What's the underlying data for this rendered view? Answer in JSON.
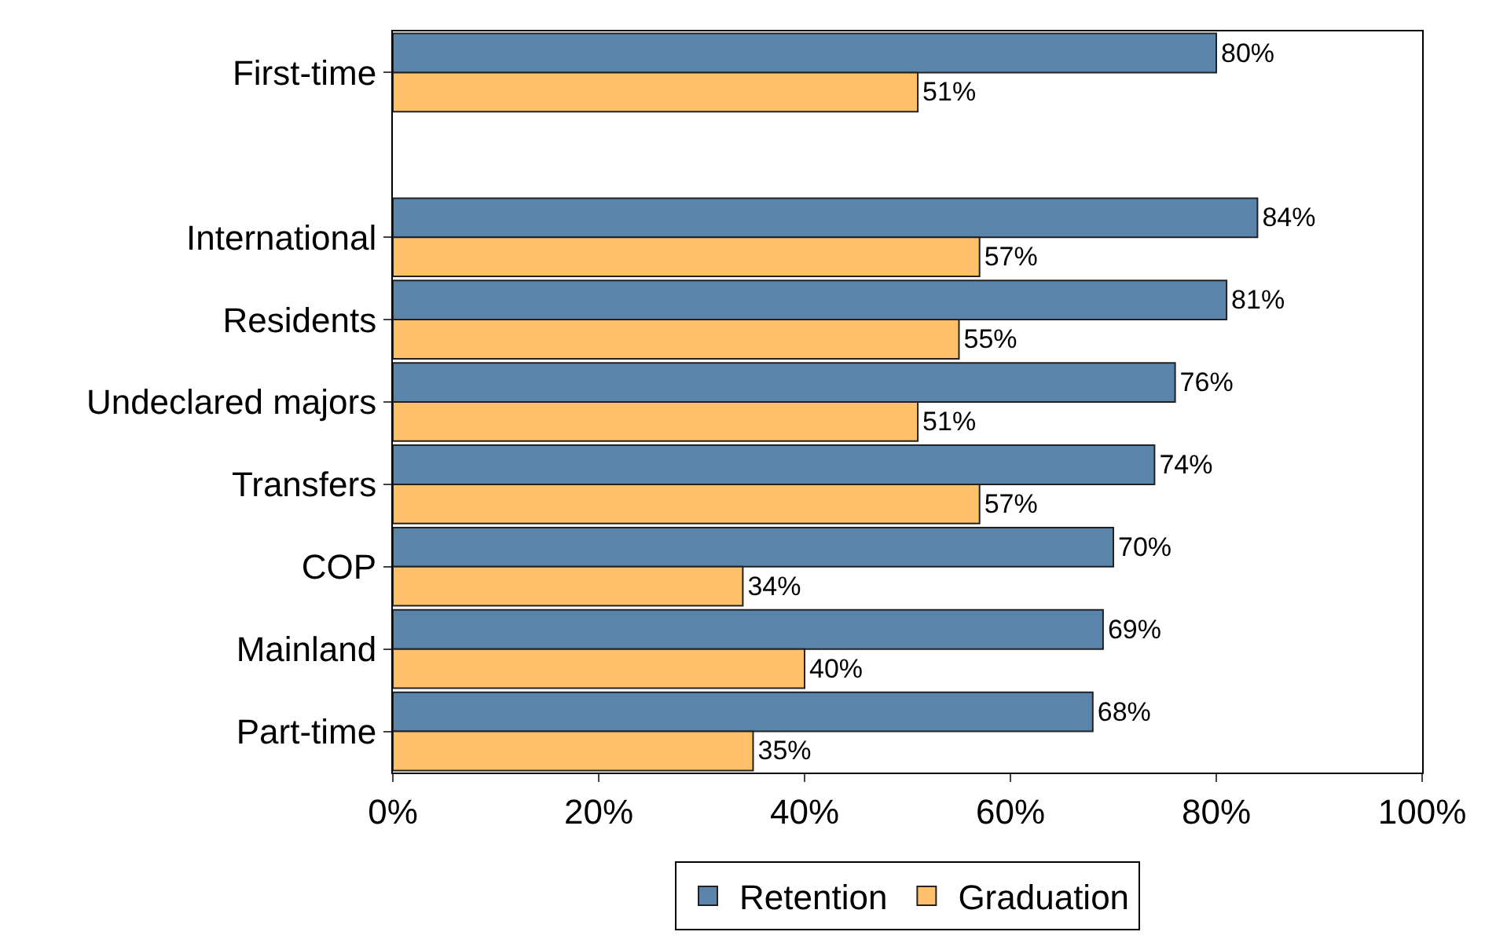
{
  "chart_data": {
    "type": "bar",
    "orientation": "horizontal",
    "categories": [
      "First-time",
      null,
      "International",
      "Residents",
      "Undeclared majors",
      "Transfers",
      "COP",
      "Mainland",
      "Part-time"
    ],
    "series": [
      {
        "name": "Retention",
        "color": "#5b84aa",
        "values": [
          80,
          null,
          84,
          81,
          76,
          74,
          70,
          69,
          68
        ],
        "value_labels": [
          "80%",
          null,
          "84%",
          "81%",
          "76%",
          "74%",
          "70%",
          "69%",
          "68%"
        ]
      },
      {
        "name": "Graduation",
        "color": "#ffc06a",
        "values": [
          51,
          null,
          57,
          55,
          51,
          57,
          34,
          40,
          35
        ],
        "value_labels": [
          "51%",
          null,
          "57%",
          "55%",
          "51%",
          "57%",
          "34%",
          "40%",
          "35%"
        ]
      }
    ],
    "xlim": [
      0,
      100
    ],
    "xticks": [
      {
        "value": 0,
        "label": "0%"
      },
      {
        "value": 20,
        "label": "20%"
      },
      {
        "value": 40,
        "label": "40%"
      },
      {
        "value": 60,
        "label": "60%"
      },
      {
        "value": 80,
        "label": "80%"
      },
      {
        "value": 100,
        "label": "100%"
      }
    ],
    "grid": false,
    "legend": "bottom"
  }
}
